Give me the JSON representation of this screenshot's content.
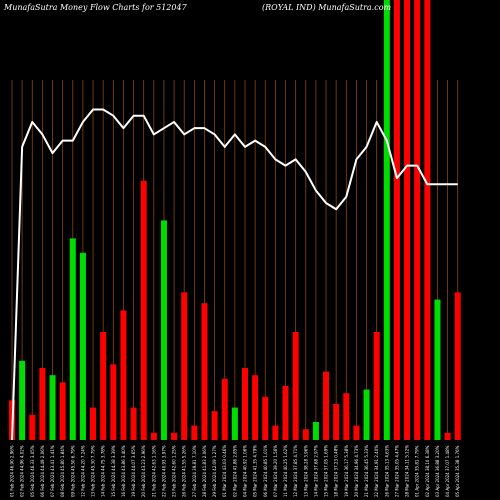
{
  "header": {
    "left_title": "MunafaSutra  Money Flow  Charts for 512047",
    "right_title": "(ROYAL  IND) MunafaSutra.com"
  },
  "colors": {
    "background": "#000000",
    "grid": "#8B4513",
    "up_bar": "#00DD00",
    "down_bar": "#FF0000",
    "line": "#FFFFFF",
    "text": "#FFFFFF"
  },
  "chart_data": {
    "type": "bar",
    "title": "MunafaSutra  Money Flow  Charts for 512047",
    "subtitle": "(ROYAL  IND) MunafaSutra.com",
    "xlabel": "",
    "ylabel": "",
    "grid": true,
    "categories": [
      "01 Feb 2024 46.90 2.96%",
      "02 Feb 2024 44.96 4.02%",
      "05 Feb 2024 46.33 3.05%",
      "06 Feb 2024 44.49 2.06%",
      "07 Feb 2024 43.41 1.41%",
      "08 Feb 2024 45.80 1.84%",
      "09 Feb 2024 45.50 6.79%",
      "12 Feb 2024 44.20 7.24%",
      "13 Feb 2024 45.30 7.79%",
      "14 Feb 2024 44.75 3.78%",
      "15 Feb 2024 44.38 3.39%",
      "16 Feb 2024 43.86 3.40%",
      "19 Feb 2024 44.07 3.65%",
      "20 Feb 2024 43.23 2.96%",
      "21 Feb 2024 42.63 1.16%",
      "22 Feb 2024 40.93 3.97%",
      "23 Feb 2024 42.60 1.25%",
      "26 Feb 2024 41.55 5.26%",
      "27 Feb 2024 39.81 7.10%",
      "28 Feb 2024 41.83 2.06%",
      "29 Feb 2024 42.09 1.27%",
      "01 Mar 2024 43.03 0.46%",
      "02 Mar 2024 41.86 2.85%",
      "04 Mar 2024 40.92 1.06%",
      "05 Mar 2024 41.35 4.79%",
      "06 Mar 2024 40.85 1.01%",
      "07 Mar 2024 39.20 1.56%",
      "11 Mar 2024 40.25 1.62%",
      "12 Mar 2024 37.85 4.71%",
      "13 Mar 2024 38.28 3.96%",
      "14 Mar 2024 37.68 2.97%",
      "15 Mar 2024 37.05 1.69%",
      "18 Mar 2024 37.23 0.48%",
      "19 Mar 2024 36.17 5.38%",
      "20 Mar 2024 34.96 4.73%",
      "21 Mar 2024 36.45 5.33%",
      "22 Mar 2024 34.91 2.40%",
      "26 Mar 2024 35.13 4.63%",
      "27 Mar 2024 35.05 4.47%",
      "28 Mar 2024 34.11 5.12%",
      "01 Apr 2024 35.81 7.79%",
      "02 Apr 2024 38.10 6.38%",
      "03 Apr 2024 36.88 3.20%",
      "04 Apr 2024 37.07 1.48%",
      "05 Apr 2024 35.38 1.76%"
    ],
    "bar_values": [
      0.11,
      0.22,
      0.07,
      0.2,
      0.18,
      0.16,
      0.56,
      0.52,
      0.09,
      0.3,
      0.21,
      0.36,
      0.09,
      0.72,
      0.02,
      0.61,
      0.02,
      0.41,
      0.04,
      0.38,
      0.08,
      0.17,
      0.09,
      0.2,
      0.18,
      0.12,
      0.04,
      0.15,
      0.3,
      0.03,
      0.05,
      0.19,
      0.1,
      0.13,
      0.04,
      0.14,
      0.3,
      1.0,
      1.0,
      1.0,
      1.0,
      1.0,
      0.39,
      0.02,
      0.41
    ],
    "bar_colors": [
      "red",
      "green",
      "red",
      "red",
      "green",
      "red",
      "green",
      "green",
      "red",
      "red",
      "red",
      "red",
      "red",
      "red",
      "red",
      "green",
      "red",
      "red",
      "red",
      "red",
      "red",
      "red",
      "green",
      "red",
      "red",
      "red",
      "red",
      "red",
      "red",
      "red",
      "green",
      "red",
      "red",
      "red",
      "red",
      "green",
      "red",
      "green",
      "red",
      "red",
      "red",
      "red",
      "green",
      "red",
      "red"
    ],
    "line_values": [
      0.0,
      0.47,
      0.51,
      0.49,
      0.46,
      0.48,
      0.48,
      0.51,
      0.53,
      0.53,
      0.52,
      0.5,
      0.52,
      0.52,
      0.49,
      0.5,
      0.51,
      0.49,
      0.5,
      0.5,
      0.49,
      0.47,
      0.49,
      0.47,
      0.48,
      0.47,
      0.45,
      0.44,
      0.45,
      0.43,
      0.4,
      0.38,
      0.37,
      0.39,
      0.45,
      0.47,
      0.51,
      0.48,
      0.42,
      0.44,
      0.44,
      0.41,
      0.41,
      0.41,
      0.41
    ],
    "ylim": [
      0,
      1
    ],
    "line_ylim": [
      0,
      0.55
    ]
  }
}
